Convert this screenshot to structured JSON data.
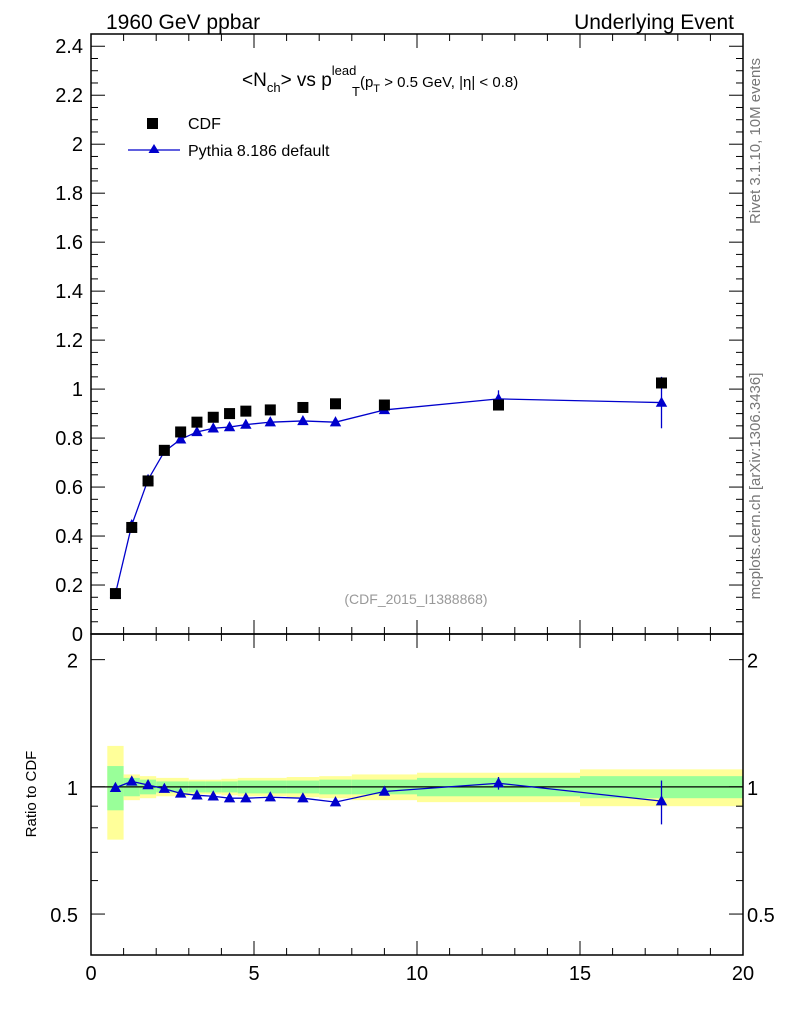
{
  "header": {
    "left": "1960 GeV ppbar",
    "right": "Underlying Event"
  },
  "side": {
    "rivet": "Rivet 3.1.10,  10M events",
    "mcplots": "mcplots.cern.ch [arXiv:1306.3436]"
  },
  "chart_data": {
    "type": "scatter",
    "title": {
      "main": "<N",
      "sub1": "ch",
      "main2": "> vs p",
      "sup": "lead",
      "sub2": "T",
      "cut1": "(p",
      "cut_sub": "T",
      "cut2": " > 0.5 GeV, |",
      "eta": "η",
      "cut3": "| < 0.8)"
    },
    "analysis_id": "(CDF_2015_I1388868)",
    "xlim": [
      0,
      20
    ],
    "ylim": [
      0,
      2.45
    ],
    "ratio_ylim": [
      0.4,
      2.3
    ],
    "ratio_ylabel": "Ratio to CDF",
    "x_ticks": [
      "0",
      "5",
      "10",
      "15",
      "20"
    ],
    "x_tick_values": [
      0,
      5,
      10,
      15,
      20
    ],
    "y_ticks": [
      "0",
      "0.2",
      "0.4",
      "0.6",
      "0.8",
      "1",
      "1.2",
      "1.4",
      "1.6",
      "1.8",
      "2",
      "2.2",
      "2.4"
    ],
    "y_tick_values": [
      0,
      0.2,
      0.4,
      0.6,
      0.8,
      1.0,
      1.2,
      1.4,
      1.6,
      1.8,
      2.0,
      2.2,
      2.4
    ],
    "ratio_ticks": [
      "0.5",
      "1",
      "2"
    ],
    "ratio_tick_values": [
      0.5,
      1,
      2
    ],
    "legend": {
      "data_label": "CDF",
      "mc_label": "Pythia 8.186 default",
      "position": "top-left"
    },
    "colors": {
      "data": "#000000",
      "mc": "#0000cc",
      "band_inner": "#99ff99",
      "band_outer": "#ffff99"
    },
    "data_series": {
      "name": "CDF",
      "x": [
        0.75,
        1.25,
        1.75,
        2.25,
        2.75,
        3.25,
        3.75,
        4.25,
        4.75,
        5.5,
        6.5,
        7.5,
        9.0,
        12.5,
        17.5
      ],
      "y": [
        0.165,
        0.435,
        0.625,
        0.75,
        0.825,
        0.865,
        0.885,
        0.9,
        0.91,
        0.915,
        0.925,
        0.94,
        0.935,
        0.935,
        1.025
      ],
      "bins": [
        [
          0.5,
          1.0
        ],
        [
          1.0,
          1.5
        ],
        [
          1.5,
          2.0
        ],
        [
          2.0,
          2.5
        ],
        [
          2.5,
          3.0
        ],
        [
          3.0,
          3.5
        ],
        [
          3.5,
          4.0
        ],
        [
          4.0,
          4.5
        ],
        [
          4.5,
          5.0
        ],
        [
          5.0,
          6.0
        ],
        [
          6.0,
          7.0
        ],
        [
          7.0,
          8.0
        ],
        [
          8.0,
          10.0
        ],
        [
          10.0,
          15.0
        ],
        [
          15.0,
          20.0
        ]
      ]
    },
    "mc_series": {
      "name": "Pythia 8.186 default",
      "x": [
        0.75,
        1.25,
        1.75,
        2.25,
        2.75,
        3.25,
        3.75,
        4.25,
        4.75,
        5.5,
        6.5,
        7.5,
        9.0,
        12.5,
        17.5
      ],
      "y": [
        0.165,
        0.445,
        0.63,
        0.745,
        0.795,
        0.825,
        0.84,
        0.845,
        0.855,
        0.865,
        0.87,
        0.865,
        0.915,
        0.96,
        0.945
      ],
      "yerr": [
        0.004,
        0.006,
        0.008,
        0.01,
        0.008,
        0.008,
        0.009,
        0.008,
        0.009,
        0.008,
        0.01,
        0.015,
        0.015,
        0.035,
        0.105
      ]
    },
    "ratio_series": {
      "x": [
        0.75,
        1.25,
        1.75,
        2.25,
        2.75,
        3.25,
        3.75,
        4.25,
        4.75,
        5.5,
        6.5,
        7.5,
        9.0,
        12.5,
        17.5
      ],
      "y": [
        0.995,
        1.03,
        1.01,
        0.99,
        0.965,
        0.955,
        0.95,
        0.94,
        0.94,
        0.945,
        0.94,
        0.92,
        0.975,
        1.02,
        0.925
      ],
      "yerr": [
        0.01,
        0.01,
        0.01,
        0.01,
        0.01,
        0.01,
        0.01,
        0.01,
        0.01,
        0.01,
        0.01,
        0.015,
        0.015,
        0.035,
        0.11
      ]
    },
    "band": {
      "inner": [
        0.12,
        0.05,
        0.04,
        0.03,
        0.03,
        0.03,
        0.03,
        0.03,
        0.035,
        0.035,
        0.035,
        0.04,
        0.04,
        0.05,
        0.06
      ],
      "outer": [
        0.25,
        0.07,
        0.06,
        0.05,
        0.05,
        0.04,
        0.04,
        0.045,
        0.05,
        0.05,
        0.055,
        0.06,
        0.07,
        0.08,
        0.1
      ]
    }
  }
}
